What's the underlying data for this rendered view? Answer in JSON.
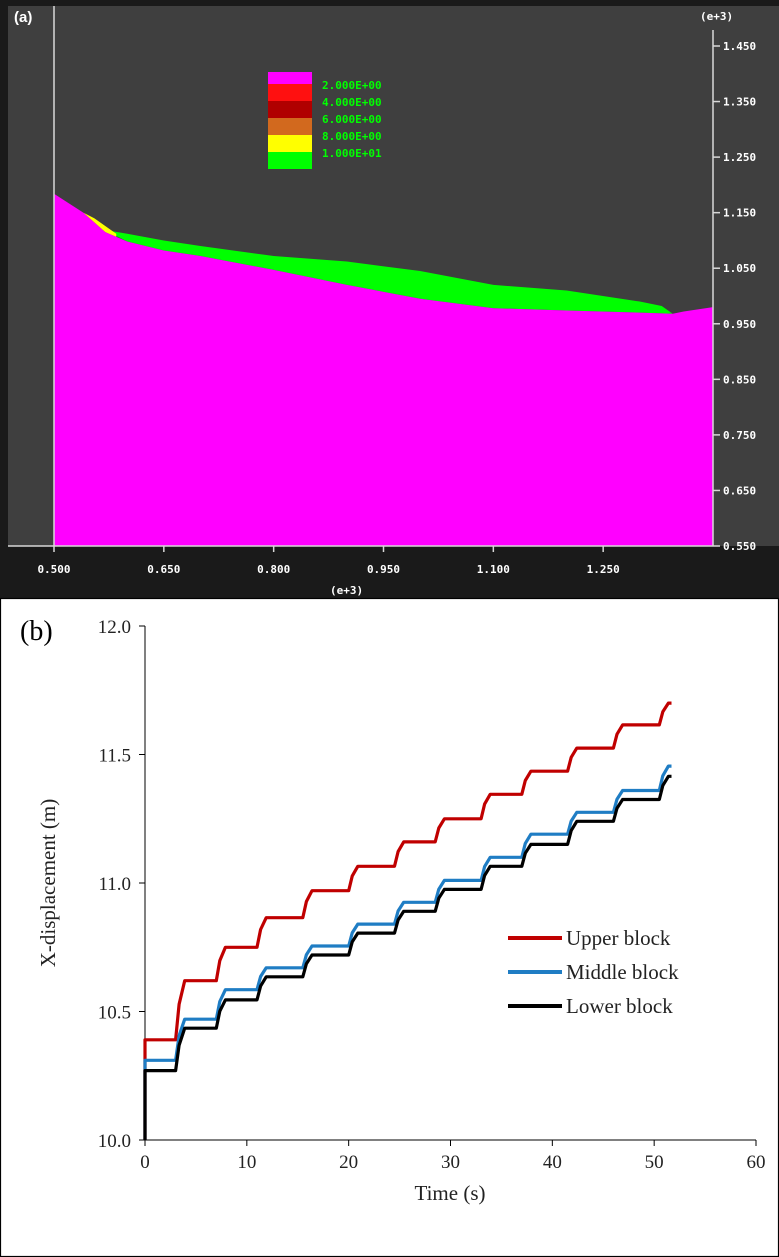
{
  "panel_a": {
    "label": "(a)",
    "x_exponent": "(e+3)",
    "y_exponent": "(e+3)",
    "legend_values": [
      "2.000E+00",
      "4.000E+00",
      "6.000E+00",
      "8.000E+00",
      "1.000E+01"
    ],
    "legend_colors": [
      "#ff00ff",
      "#ff1010",
      "#b00000",
      "#d2691e",
      "#ffff00",
      "#00ff00"
    ],
    "colors": {
      "background": "#3f3f3f",
      "frame": "#1a1a1a",
      "axis_text": "#ffffff",
      "legend_text": "#00ff00"
    }
  },
  "chart_data": [
    {
      "type": "area",
      "x_tick_labels": [
        "0.500",
        "0.650",
        "0.800",
        "0.950",
        "1.100",
        "1.250"
      ],
      "x_ticks": [
        500,
        650,
        800,
        950,
        1100,
        1250
      ],
      "y_tick_labels": [
        "1.450",
        "1.350",
        "1.250",
        "1.150",
        "1.050",
        "0.950",
        "0.850",
        "0.750",
        "0.650",
        "0.550"
      ],
      "y_ticks": [
        1450,
        1350,
        1250,
        1150,
        1050,
        950,
        850,
        750,
        650,
        550
      ],
      "xlim": [
        500,
        1400
      ],
      "ylim": [
        550,
        1450
      ],
      "slope_surface": {
        "x": [
          500,
          540,
          570,
          600,
          650,
          700,
          800,
          900,
          1000,
          1100,
          1200,
          1300,
          1345,
          1360,
          1400
        ],
        "y": [
          1184,
          1150,
          1115,
          1098,
          1082,
          1072,
          1047,
          1020,
          995,
          978,
          974,
          970,
          968,
          972,
          980
        ]
      },
      "deposit_top": {
        "x": [
          565,
          600,
          650,
          700,
          800,
          900,
          1000,
          1100,
          1200,
          1300,
          1330,
          1345
        ],
        "y": [
          1120,
          1112,
          1100,
          1090,
          1072,
          1062,
          1045,
          1020,
          1010,
          990,
          982,
          968
        ]
      }
    },
    {
      "type": "line",
      "xlabel": "Time (s)",
      "ylabel": "X-displacement (m)",
      "xlim": [
        0,
        60
      ],
      "ylim": [
        10.0,
        12.0
      ],
      "x_tick_labels": [
        "0",
        "10",
        "20",
        "30",
        "40",
        "50",
        "60"
      ],
      "y_tick_labels": [
        "10.0",
        "10.5",
        "11.0",
        "11.5",
        "12.0"
      ],
      "step_times": [
        3.0,
        7.0,
        11.0,
        15.5,
        20.0,
        24.5,
        28.5,
        33.0,
        37.0,
        41.5,
        46.0,
        50.5
      ],
      "end_time": 51.7,
      "series": [
        {
          "name": "Upper block",
          "color": "#c00000",
          "start": 10.39,
          "levels": [
            10.62,
            10.75,
            10.865,
            10.97,
            11.065,
            11.16,
            11.25,
            11.345,
            11.435,
            11.525,
            11.615,
            11.7
          ]
        },
        {
          "name": "Middle block",
          "color": "#1f7dc4",
          "start": 10.31,
          "levels": [
            10.47,
            10.585,
            10.67,
            10.755,
            10.84,
            10.925,
            11.01,
            11.1,
            11.19,
            11.275,
            11.36,
            11.455
          ]
        },
        {
          "name": "Lower block",
          "color": "#000000",
          "start": 10.27,
          "levels": [
            10.435,
            10.545,
            10.635,
            10.72,
            10.805,
            10.89,
            10.975,
            11.065,
            11.15,
            11.24,
            11.325,
            11.415
          ]
        }
      ]
    }
  ],
  "panel_b": {
    "label": "(b)"
  }
}
